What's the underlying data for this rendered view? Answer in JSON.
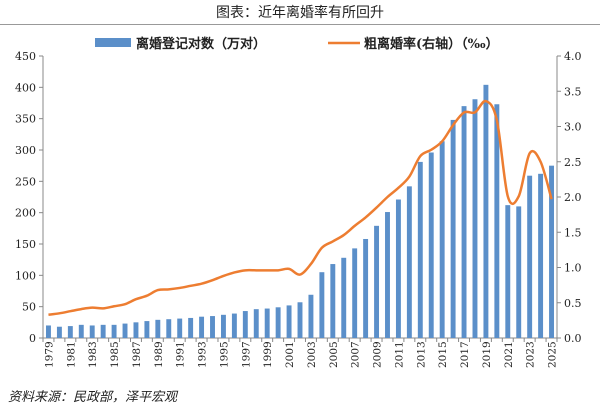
{
  "title": "图表：近年离婚率有所回升",
  "source": "资料来源：民政部，泽平宏观",
  "chart_data": {
    "type": "bar+line",
    "categories": [
      1979,
      1980,
      1981,
      1982,
      1983,
      1984,
      1985,
      1986,
      1987,
      1988,
      1989,
      1990,
      1991,
      1992,
      1993,
      1994,
      1995,
      1996,
      1997,
      1998,
      1999,
      2000,
      2001,
      2002,
      2003,
      2004,
      2005,
      2006,
      2007,
      2008,
      2009,
      2010,
      2011,
      2012,
      2013,
      2014,
      2015,
      2016,
      2017,
      2018,
      2019,
      2020,
      2021,
      2022,
      2023,
      2024,
      2025
    ],
    "x_tick_labels": [
      "1979",
      "1981",
      "1983",
      "1985",
      "1987",
      "1989",
      "1991",
      "1993",
      "1995",
      "1997",
      "1999",
      "2001",
      "2003",
      "2005",
      "2007",
      "2009",
      "2011",
      "2013",
      "2015",
      "2017",
      "2019",
      "2021",
      "2023",
      "2025"
    ],
    "series": [
      {
        "name": "离婚登记对数（万对）",
        "type": "bar",
        "axis": "left",
        "color": "#5b8fc9",
        "values": [
          20,
          18,
          19,
          21,
          20,
          21,
          21,
          23,
          25,
          27,
          29,
          30,
          31,
          32,
          34,
          35,
          37,
          39,
          43,
          46,
          47,
          49,
          52,
          57,
          69,
          105,
          118,
          128,
          143,
          158,
          179,
          201,
          221,
          242,
          281,
          296,
          314,
          348,
          370,
          381,
          404,
          373,
          212,
          210,
          259,
          262,
          275
        ]
      },
      {
        "name": "粗离婚率(右轴）（‰）",
        "type": "line",
        "axis": "right",
        "color": "#ed7d31",
        "values": [
          0.33,
          0.35,
          0.38,
          0.41,
          0.43,
          0.42,
          0.45,
          0.48,
          0.55,
          0.6,
          0.68,
          0.69,
          0.71,
          0.74,
          0.77,
          0.82,
          0.88,
          0.93,
          0.96,
          0.96,
          0.96,
          0.96,
          0.98,
          0.9,
          1.05,
          1.28,
          1.37,
          1.46,
          1.59,
          1.71,
          1.85,
          2.0,
          2.13,
          2.29,
          2.58,
          2.67,
          2.79,
          3.02,
          3.2,
          3.2,
          3.36,
          3.09,
          2.01,
          2.01,
          2.62,
          2.5,
          1.97
        ]
      }
    ],
    "left_axis": {
      "ylim": [
        0,
        450
      ],
      "ticks": [
        "0",
        "50",
        "100",
        "150",
        "200",
        "250",
        "300",
        "350",
        "400",
        "450"
      ]
    },
    "right_axis": {
      "ylim": [
        0,
        4.0
      ],
      "ticks": [
        "0.0",
        "0.5",
        "1.0",
        "1.5",
        "2.0",
        "2.5",
        "3.0",
        "3.5",
        "4.0"
      ]
    },
    "legend_position": "top",
    "grid": false
  }
}
